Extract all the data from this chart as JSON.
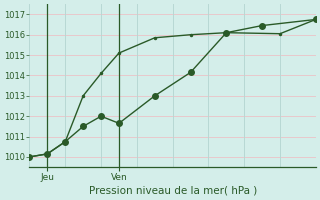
{
  "xlabel": "Pression niveau de la mer( hPa )",
  "background_color": "#d4eeea",
  "grid_color_h": "#e8c8cc",
  "grid_color_v": "#b8d8d4",
  "line_color": "#2a5a28",
  "border_color": "#2a5a28",
  "ylim": [
    1009.5,
    1017.5
  ],
  "yticks": [
    1010,
    1011,
    1012,
    1013,
    1014,
    1015,
    1016,
    1017
  ],
  "xlim": [
    0,
    16
  ],
  "x_jeu": 1,
  "x_ven": 5,
  "xtick_labels": [
    "Jeu",
    "Ven"
  ],
  "line1_x": [
    0,
    1,
    2,
    3,
    4,
    5,
    7,
    9,
    11,
    13,
    16
  ],
  "line1_y": [
    1010.0,
    1010.15,
    1010.75,
    1011.5,
    1012.0,
    1011.65,
    1013.0,
    1014.15,
    1016.1,
    1016.45,
    1016.75
  ],
  "line2_x": [
    0,
    1,
    2,
    3,
    4,
    5,
    7,
    9,
    11,
    14,
    16
  ],
  "line2_y": [
    1010.0,
    1010.15,
    1010.75,
    1013.0,
    1014.1,
    1015.1,
    1015.85,
    1016.0,
    1016.1,
    1016.05,
    1016.75
  ],
  "marker1_size": 4,
  "marker2_size": 3,
  "linewidth": 1.0
}
